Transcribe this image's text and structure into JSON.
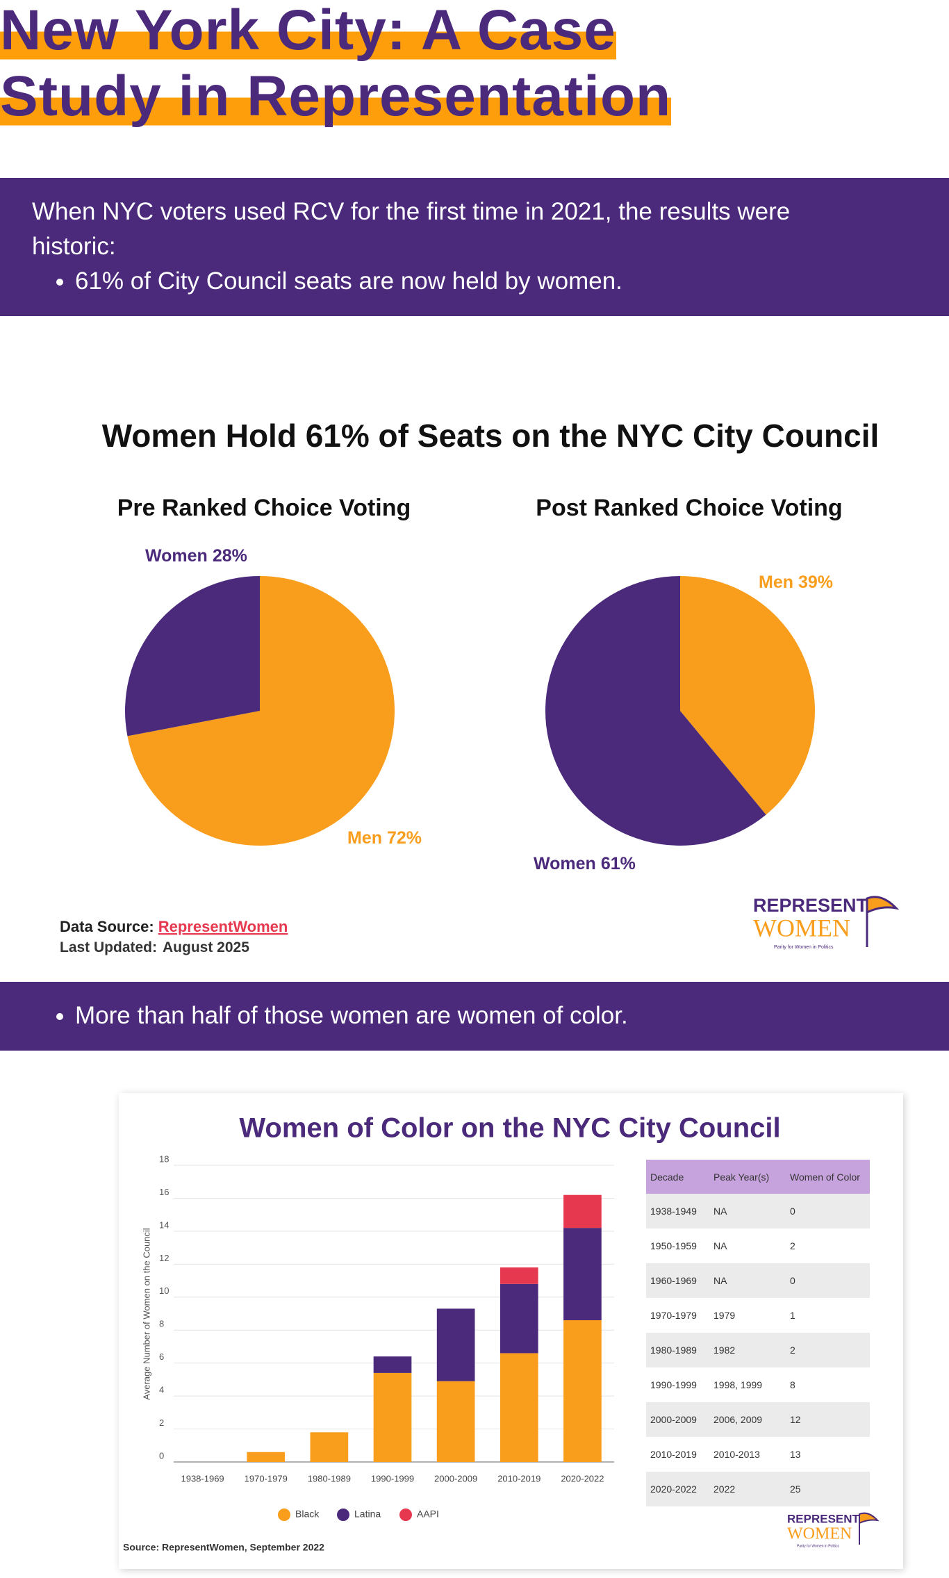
{
  "header": {
    "title": "New York City: A Case Study in Representation"
  },
  "intro": {
    "text": "When NYC voters used RCV for the first time in 2021, the results were historic:",
    "bullets": [
      "61% of City Council seats are now held by women."
    ]
  },
  "pie_section": {
    "title": "Women Hold 61% of Seats on the NYC City Council",
    "source_label": "Data Source:",
    "source_link": "RepresentWomen",
    "updated_label": "Last Updated:",
    "updated": "August 2025"
  },
  "chart_data": [
    {
      "type": "pie",
      "title": "Pre Ranked Choice Voting",
      "categories": [
        "Men",
        "Women"
      ],
      "values": [
        72,
        28
      ],
      "value_labels": [
        "72%",
        "28%"
      ],
      "colors": [
        "#f99d1c",
        "#4b2a7b"
      ]
    },
    {
      "type": "pie",
      "title": "Post Ranked Choice Voting",
      "categories": [
        "Men",
        "Women"
      ],
      "values": [
        39,
        61
      ],
      "value_labels": [
        "39%",
        "61%"
      ],
      "colors": [
        "#f99d1c",
        "#4b2a7b"
      ]
    },
    {
      "type": "stacked_bar",
      "title": "Women of Color on the NYC City Council",
      "ylabel": "Average Number of Women on the Council",
      "categories": [
        "1938-1969",
        "1970-1979",
        "1980-1989",
        "1990-1999",
        "2000-2009",
        "2010-2019",
        "2020-2022"
      ],
      "series": [
        {
          "name": "Black",
          "color": "#f99d1c",
          "values": [
            0,
            0.6,
            1.8,
            5.4,
            4.9,
            6.6,
            8.6
          ]
        },
        {
          "name": "Latina",
          "color": "#4b2a7b",
          "values": [
            0,
            0,
            0,
            1,
            4.4,
            4.2,
            5.6
          ]
        },
        {
          "name": "AAPI",
          "color": "#e63950",
          "values": [
            0,
            0,
            0,
            0,
            0,
            1,
            2
          ]
        }
      ],
      "ylim": [
        0,
        18
      ],
      "yticks": [
        0,
        2,
        4,
        6,
        8,
        10,
        12,
        14,
        16,
        18
      ],
      "grid": true,
      "source": "Source: RepresentWomen, September 2022"
    }
  ],
  "bullets2": [
    "More than half of those women are women of color."
  ],
  "table": {
    "header": [
      "Decade",
      "Peak Year(s)",
      "Women of Color"
    ],
    "rows": [
      [
        "1938-1949",
        "NA",
        "0"
      ],
      [
        "1950-1959",
        "NA",
        "2"
      ],
      [
        "1960-1969",
        "NA",
        "0"
      ],
      [
        "1970-1979",
        "1979",
        "1"
      ],
      [
        "1980-1989",
        "1982",
        "2"
      ],
      [
        "1990-1999",
        "1998, 1999",
        "8"
      ],
      [
        "2000-2009",
        "2006, 2009",
        "12"
      ],
      [
        "2010-2019",
        "2010-2013",
        "13"
      ],
      [
        "2020-2022",
        "2022",
        "25"
      ]
    ]
  },
  "logo": {
    "top": "REPRESENT",
    "bottom": "WOMEN",
    "tagline": "Parity for Women in Politics"
  }
}
